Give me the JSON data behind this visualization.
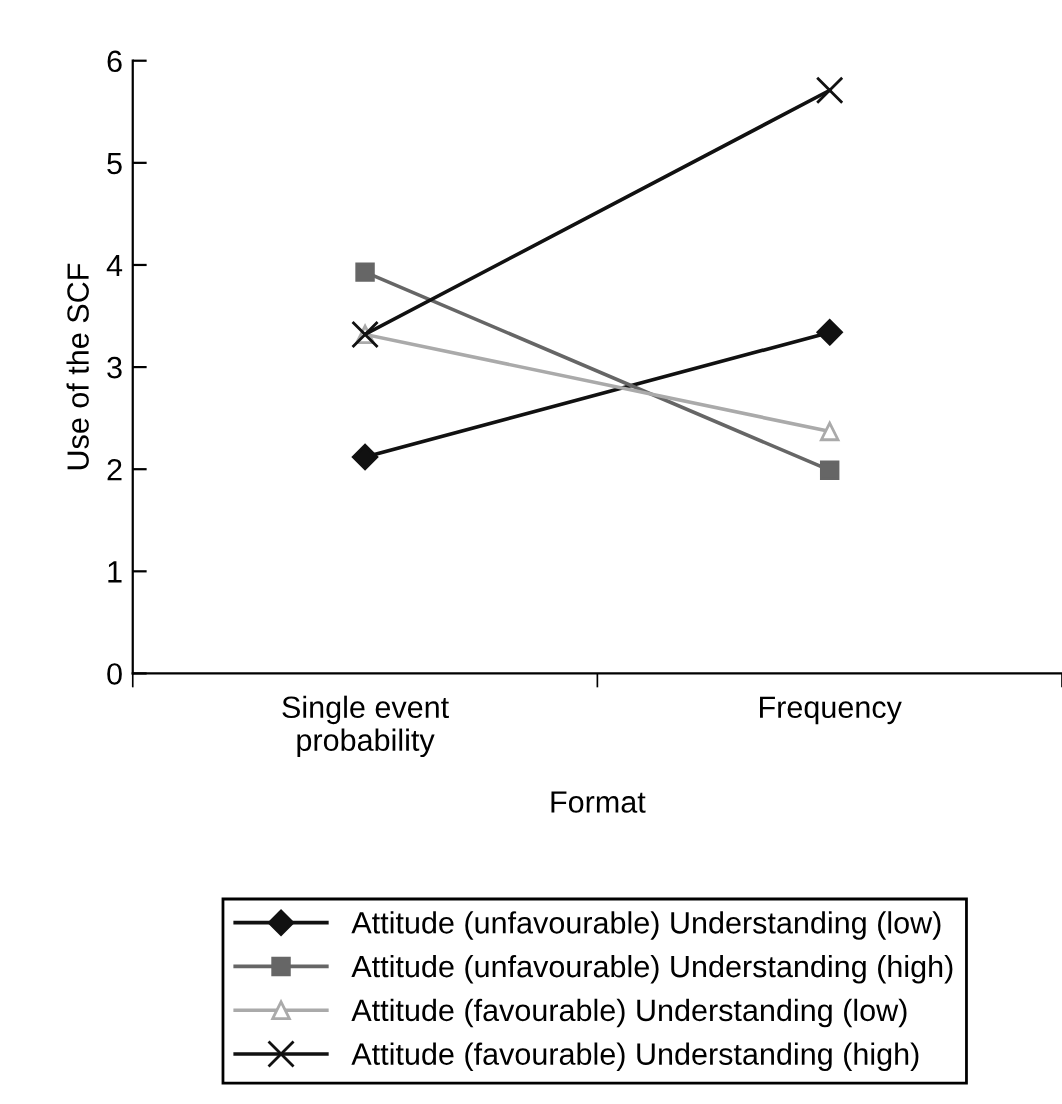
{
  "chart_data": {
    "type": "line",
    "xlabel": "Format",
    "ylabel": "Use of the SCF",
    "categories": [
      "Single event\nprobability",
      "Frequency"
    ],
    "ylim": [
      0,
      6
    ],
    "yticks": [
      0,
      1,
      2,
      3,
      4,
      5,
      6
    ],
    "grid": false,
    "legend": "bottom",
    "line_style": "solid",
    "series": [
      {
        "name": "Attitude (unfavourable) Understanding (low)",
        "color": "#111111",
        "marker": "diamond",
        "values": [
          2.12,
          3.34
        ]
      },
      {
        "name": "Attitude (unfavourable) Understanding (high)",
        "color": "#666666",
        "marker": "square",
        "values": [
          3.93,
          1.99
        ]
      },
      {
        "name": "Attitude (favourable) Understanding (low)",
        "color": "#aaaaaa",
        "marker": "triangle",
        "values": [
          3.32,
          2.37
        ]
      },
      {
        "name": "Attitude (favourable) Understanding (high)",
        "color": "#111111",
        "marker": "cross",
        "values": [
          3.32,
          5.71
        ]
      }
    ]
  }
}
